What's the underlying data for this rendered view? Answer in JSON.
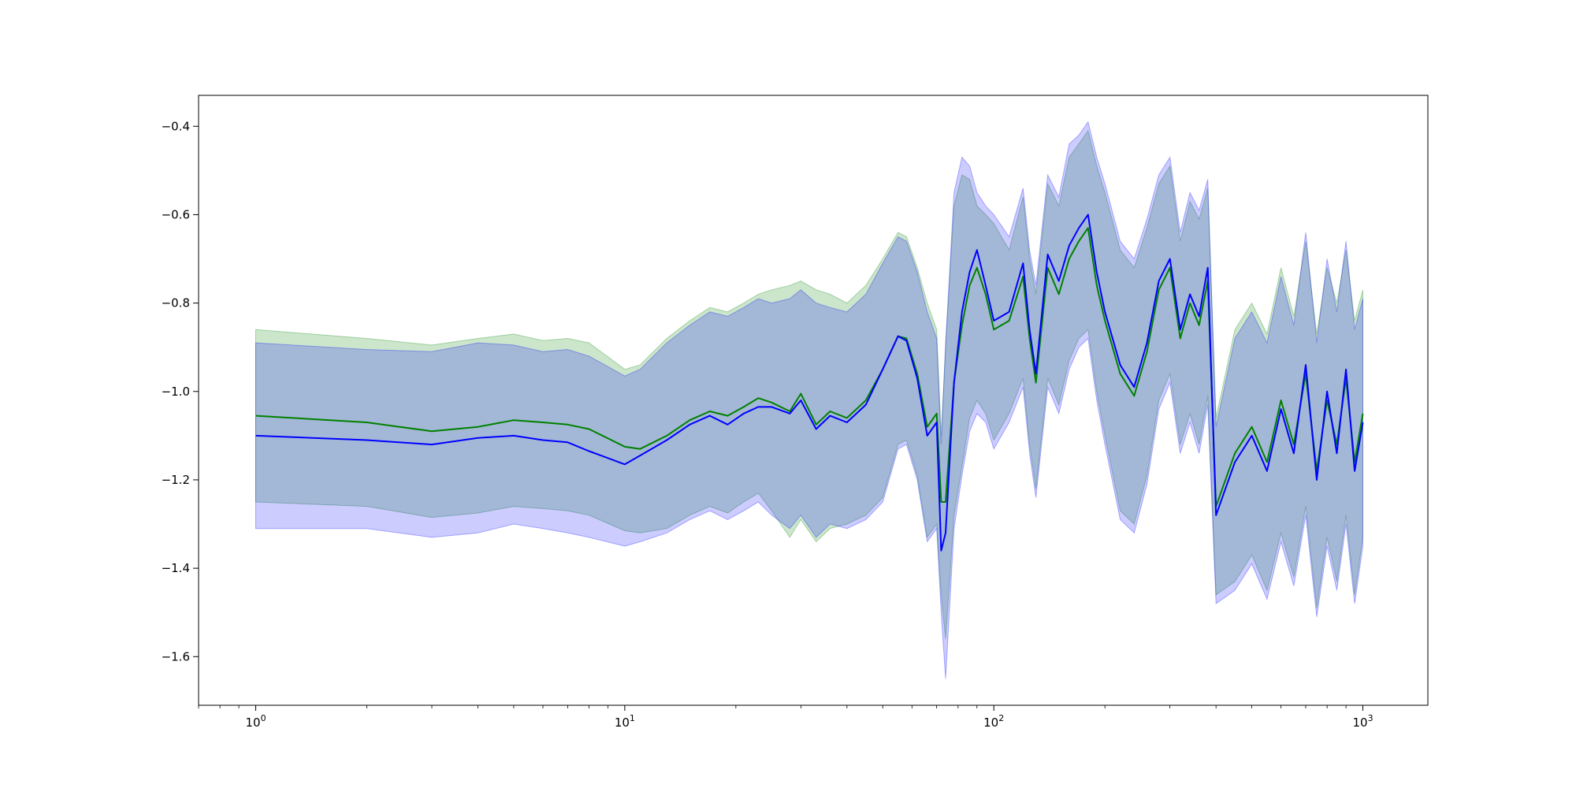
{
  "chart_data": {
    "type": "line",
    "xscale": "log",
    "xlim": [
      0.7,
      1500
    ],
    "ylim": [
      -1.71,
      -0.33
    ],
    "grid": false,
    "legend": "none",
    "title": "",
    "xlabel": "",
    "ylabel": "",
    "x_ticks": [
      {
        "base": "10",
        "exp": "0",
        "value": 1
      },
      {
        "base": "10",
        "exp": "1",
        "value": 10
      },
      {
        "base": "10",
        "exp": "2",
        "value": 100
      },
      {
        "base": "10",
        "exp": "3",
        "value": 1000
      }
    ],
    "y_ticks": [
      {
        "label": "−0.4",
        "value": -0.4
      },
      {
        "label": "−0.6",
        "value": -0.6
      },
      {
        "label": "−0.8",
        "value": -0.8
      },
      {
        "label": "−1.0",
        "value": -1.0
      },
      {
        "label": "−1.2",
        "value": -1.2
      },
      {
        "label": "−1.4",
        "value": -1.4
      },
      {
        "label": "−1.6",
        "value": -1.6
      }
    ],
    "series": [
      {
        "color": "#008000",
        "band_color": "#008000",
        "band_opacity": 0.2,
        "x": [
          1,
          2,
          3,
          4,
          5,
          6,
          7,
          8,
          10,
          11,
          13,
          15,
          17,
          19,
          21,
          23,
          25,
          28,
          30,
          33,
          36,
          40,
          45,
          50,
          55,
          58,
          62,
          66,
          70,
          72,
          74,
          78,
          82,
          86,
          90,
          95,
          100,
          110,
          120,
          125,
          130,
          140,
          150,
          160,
          170,
          180,
          190,
          200,
          220,
          240,
          260,
          280,
          300,
          320,
          340,
          360,
          380,
          400,
          450,
          500,
          550,
          600,
          650,
          700,
          750,
          800,
          850,
          900,
          950,
          1000
        ],
        "y": [
          -1.055,
          -1.07,
          -1.09,
          -1.08,
          -1.065,
          -1.07,
          -1.075,
          -1.085,
          -1.125,
          -1.13,
          -1.1,
          -1.065,
          -1.045,
          -1.055,
          -1.035,
          -1.015,
          -1.025,
          -1.045,
          -1.005,
          -1.075,
          -1.045,
          -1.06,
          -1.02,
          -0.95,
          -0.875,
          -0.88,
          -0.96,
          -1.08,
          -1.05,
          -1.25,
          -1.25,
          -0.98,
          -0.85,
          -0.76,
          -0.72,
          -0.78,
          -0.86,
          -0.84,
          -0.74,
          -0.88,
          -0.98,
          -0.72,
          -0.78,
          -0.7,
          -0.66,
          -0.63,
          -0.76,
          -0.84,
          -0.96,
          -1.01,
          -0.91,
          -0.77,
          -0.72,
          -0.88,
          -0.8,
          -0.85,
          -0.75,
          -1.26,
          -1.14,
          -1.08,
          -1.16,
          -1.02,
          -1.12,
          -0.96,
          -1.18,
          -1.02,
          -1.12,
          -0.97,
          -1.16,
          -1.05
        ],
        "upper": [
          -0.86,
          -0.88,
          -0.895,
          -0.88,
          -0.87,
          -0.885,
          -0.88,
          -0.89,
          -0.95,
          -0.94,
          -0.88,
          -0.84,
          -0.81,
          -0.82,
          -0.8,
          -0.78,
          -0.77,
          -0.76,
          -0.75,
          -0.77,
          -0.78,
          -0.8,
          -0.76,
          -0.7,
          -0.64,
          -0.65,
          -0.72,
          -0.8,
          -0.86,
          -1.1,
          -0.9,
          -0.58,
          -0.51,
          -0.52,
          -0.58,
          -0.6,
          -0.62,
          -0.68,
          -0.56,
          -0.7,
          -0.78,
          -0.53,
          -0.58,
          -0.47,
          -0.44,
          -0.41,
          -0.49,
          -0.55,
          -0.68,
          -0.72,
          -0.63,
          -0.53,
          -0.49,
          -0.66,
          -0.57,
          -0.61,
          -0.54,
          -1.06,
          -0.86,
          -0.8,
          -0.87,
          -0.72,
          -0.83,
          -0.66,
          -0.87,
          -0.72,
          -0.8,
          -0.68,
          -0.84,
          -0.77
        ],
        "lower": [
          -1.25,
          -1.26,
          -1.285,
          -1.275,
          -1.26,
          -1.265,
          -1.27,
          -1.28,
          -1.315,
          -1.32,
          -1.31,
          -1.28,
          -1.26,
          -1.275,
          -1.25,
          -1.23,
          -1.27,
          -1.33,
          -1.29,
          -1.34,
          -1.31,
          -1.3,
          -1.28,
          -1.24,
          -1.12,
          -1.11,
          -1.19,
          -1.33,
          -1.3,
          -1.46,
          -1.56,
          -1.28,
          -1.17,
          -1.06,
          -1.02,
          -1.05,
          -1.11,
          -1.05,
          -0.97,
          -1.12,
          -1.22,
          -0.97,
          -1.03,
          -0.93,
          -0.88,
          -0.86,
          -1.0,
          -1.1,
          -1.27,
          -1.3,
          -1.19,
          -1.02,
          -0.96,
          -1.12,
          -1.05,
          -1.12,
          -1.01,
          -1.46,
          -1.43,
          -1.37,
          -1.45,
          -1.32,
          -1.42,
          -1.26,
          -1.49,
          -1.33,
          -1.43,
          -1.28,
          -1.46,
          -1.33
        ]
      },
      {
        "color": "#0000ff",
        "band_color": "#0000ff",
        "band_opacity": 0.2,
        "x": [
          1,
          2,
          3,
          4,
          5,
          6,
          7,
          8,
          10,
          11,
          13,
          15,
          17,
          19,
          21,
          23,
          25,
          28,
          30,
          33,
          36,
          40,
          45,
          50,
          55,
          58,
          62,
          66,
          70,
          72,
          74,
          78,
          82,
          86,
          90,
          95,
          100,
          110,
          120,
          125,
          130,
          140,
          150,
          160,
          170,
          180,
          190,
          200,
          220,
          240,
          260,
          280,
          300,
          320,
          340,
          360,
          380,
          400,
          450,
          500,
          550,
          600,
          650,
          700,
          750,
          800,
          850,
          900,
          950,
          1000
        ],
        "y": [
          -1.1,
          -1.11,
          -1.12,
          -1.105,
          -1.1,
          -1.11,
          -1.115,
          -1.135,
          -1.165,
          -1.145,
          -1.11,
          -1.075,
          -1.055,
          -1.075,
          -1.05,
          -1.035,
          -1.035,
          -1.05,
          -1.02,
          -1.085,
          -1.055,
          -1.07,
          -1.03,
          -0.95,
          -0.875,
          -0.885,
          -0.97,
          -1.1,
          -1.07,
          -1.36,
          -1.32,
          -0.98,
          -0.82,
          -0.73,
          -0.68,
          -0.76,
          -0.84,
          -0.82,
          -0.71,
          -0.86,
          -0.96,
          -0.69,
          -0.75,
          -0.67,
          -0.63,
          -0.6,
          -0.73,
          -0.82,
          -0.94,
          -0.99,
          -0.89,
          -0.75,
          -0.7,
          -0.86,
          -0.78,
          -0.83,
          -0.72,
          -1.28,
          -1.16,
          -1.1,
          -1.18,
          -1.04,
          -1.14,
          -0.94,
          -1.2,
          -1.0,
          -1.14,
          -0.95,
          -1.18,
          -1.07
        ],
        "upper": [
          -0.89,
          -0.905,
          -0.91,
          -0.89,
          -0.895,
          -0.91,
          -0.905,
          -0.92,
          -0.965,
          -0.95,
          -0.89,
          -0.85,
          -0.82,
          -0.83,
          -0.81,
          -0.79,
          -0.8,
          -0.79,
          -0.77,
          -0.8,
          -0.81,
          -0.82,
          -0.78,
          -0.71,
          -0.65,
          -0.66,
          -0.73,
          -0.82,
          -0.88,
          -1.12,
          -0.89,
          -0.55,
          -0.47,
          -0.49,
          -0.55,
          -0.58,
          -0.6,
          -0.65,
          -0.54,
          -0.68,
          -0.76,
          -0.51,
          -0.56,
          -0.44,
          -0.42,
          -0.39,
          -0.47,
          -0.53,
          -0.66,
          -0.7,
          -0.61,
          -0.51,
          -0.47,
          -0.64,
          -0.55,
          -0.59,
          -0.52,
          -1.08,
          -0.88,
          -0.82,
          -0.89,
          -0.74,
          -0.85,
          -0.64,
          -0.89,
          -0.7,
          -0.82,
          -0.66,
          -0.86,
          -0.79
        ],
        "lower": [
          -1.31,
          -1.31,
          -1.33,
          -1.32,
          -1.3,
          -1.31,
          -1.32,
          -1.33,
          -1.35,
          -1.34,
          -1.32,
          -1.29,
          -1.27,
          -1.29,
          -1.27,
          -1.25,
          -1.28,
          -1.31,
          -1.28,
          -1.33,
          -1.3,
          -1.31,
          -1.29,
          -1.25,
          -1.13,
          -1.12,
          -1.2,
          -1.34,
          -1.31,
          -1.5,
          -1.65,
          -1.31,
          -1.19,
          -1.09,
          -1.05,
          -1.07,
          -1.13,
          -1.07,
          -0.99,
          -1.14,
          -1.24,
          -0.99,
          -1.05,
          -0.95,
          -0.9,
          -0.88,
          -1.02,
          -1.12,
          -1.29,
          -1.32,
          -1.21,
          -1.04,
          -0.98,
          -1.14,
          -1.07,
          -1.14,
          -1.03,
          -1.48,
          -1.45,
          -1.39,
          -1.47,
          -1.34,
          -1.44,
          -1.28,
          -1.51,
          -1.35,
          -1.45,
          -1.3,
          -1.48,
          -1.35
        ]
      }
    ]
  }
}
